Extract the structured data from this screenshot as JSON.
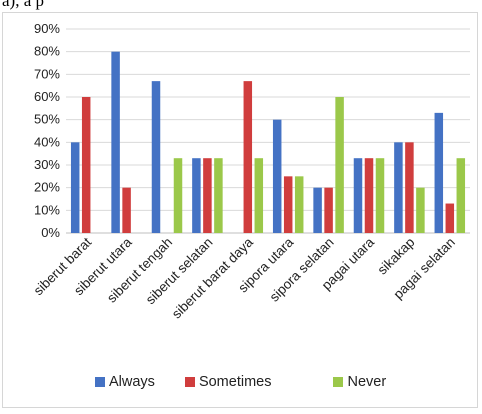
{
  "top_fragment": "a), a p",
  "chart_data": {
    "type": "bar",
    "categories": [
      "siberut barat",
      "siberut utara",
      "siberut tengah",
      "siberut selatan",
      "siberut barat daya",
      "sipora utara",
      "sipora selatan",
      "pagai utara",
      "sikakap",
      "pagai selatan"
    ],
    "series": [
      {
        "name": "Always",
        "color": "#4472c4",
        "values": [
          40,
          80,
          67,
          33,
          0,
          50,
          20,
          33,
          40,
          53
        ]
      },
      {
        "name": "Sometimes",
        "color": "#d03d3d",
        "values": [
          60,
          20,
          0,
          33,
          67,
          25,
          20,
          33,
          40,
          13
        ]
      },
      {
        "name": "Never",
        "color": "#9bc84a",
        "values": [
          0,
          0,
          33,
          33,
          33,
          25,
          60,
          33,
          20,
          33
        ]
      }
    ],
    "y_ticks": [
      "0%",
      "10%",
      "20%",
      "30%",
      "40%",
      "50%",
      "60%",
      "70%",
      "80%",
      "90%"
    ],
    "ylim": [
      0,
      90
    ],
    "grid": true,
    "legend_position": "bottom"
  }
}
